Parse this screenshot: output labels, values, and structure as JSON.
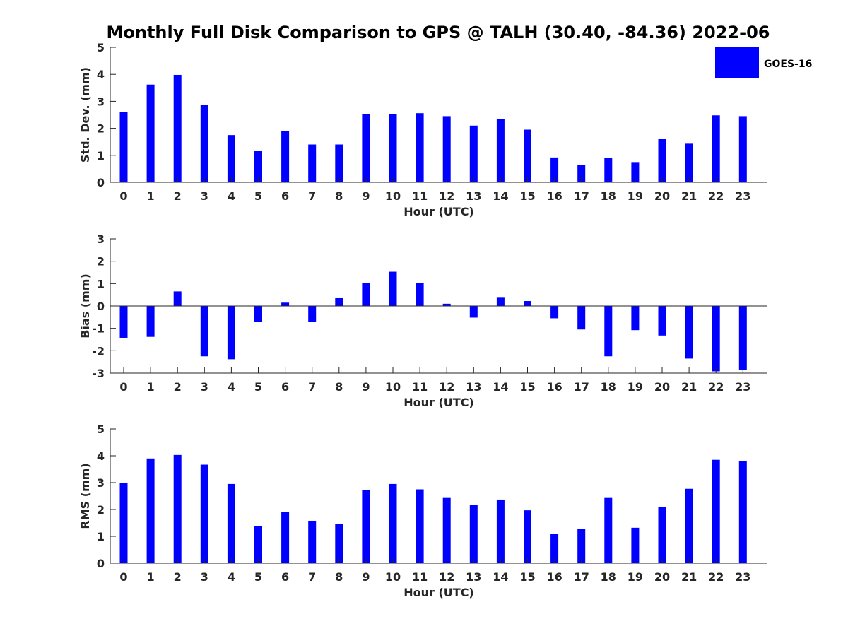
{
  "title": "Monthly Full Disk Comparison to GPS @ TALH (30.40, -84.36) 2022-06",
  "legend": {
    "label": "GOES-16",
    "color": "#0000ff",
    "placement": "top-right"
  },
  "colors": {
    "bar": "#0000ff",
    "axis": "#262626",
    "title": "#000000"
  },
  "chart_data": [
    {
      "type": "bar",
      "ylabel": "Std. Dev. (mm)",
      "xlabel": "Hour (UTC)",
      "ylim": [
        0,
        5
      ],
      "yticks": [
        "0",
        "1",
        "2",
        "3",
        "4",
        "5"
      ],
      "categories": [
        "0",
        "1",
        "2",
        "3",
        "4",
        "5",
        "6",
        "7",
        "8",
        "9",
        "10",
        "11",
        "12",
        "13",
        "14",
        "15",
        "16",
        "17",
        "18",
        "19",
        "20",
        "21",
        "22",
        "23"
      ],
      "series": [
        {
          "name": "GOES-16",
          "values": [
            2.6,
            3.62,
            3.98,
            2.87,
            1.75,
            1.17,
            1.89,
            1.4,
            1.4,
            2.53,
            2.53,
            2.56,
            2.45,
            2.1,
            2.35,
            1.95,
            0.92,
            0.65,
            0.9,
            0.75,
            1.6,
            1.43,
            2.48,
            2.45
          ]
        }
      ],
      "grid": false
    },
    {
      "type": "bar",
      "ylabel": "Bias (mm)",
      "xlabel": "Hour (UTC)",
      "ylim": [
        -3,
        3
      ],
      "yticks": [
        "-3",
        "-2",
        "-1",
        "0",
        "1",
        "2",
        "3"
      ],
      "zero_line": true,
      "categories": [
        "0",
        "1",
        "2",
        "3",
        "4",
        "5",
        "6",
        "7",
        "8",
        "9",
        "10",
        "11",
        "12",
        "13",
        "14",
        "15",
        "16",
        "17",
        "18",
        "19",
        "20",
        "21",
        "22",
        "23"
      ],
      "series": [
        {
          "name": "GOES-16",
          "values": [
            -1.42,
            -1.38,
            0.65,
            -2.25,
            -2.38,
            -0.7,
            0.15,
            -0.72,
            0.38,
            1.02,
            1.53,
            1.02,
            0.1,
            -0.52,
            0.4,
            0.22,
            -0.55,
            -1.05,
            -2.25,
            -1.08,
            -1.32,
            -2.35,
            -2.92,
            -2.85
          ]
        }
      ],
      "grid": false
    },
    {
      "type": "bar",
      "ylabel": "RMS (mm)",
      "xlabel": "Hour (UTC)",
      "ylim": [
        0,
        5
      ],
      "yticks": [
        "0",
        "1",
        "2",
        "3",
        "4",
        "5"
      ],
      "categories": [
        "0",
        "1",
        "2",
        "3",
        "4",
        "5",
        "6",
        "7",
        "8",
        "9",
        "10",
        "11",
        "12",
        "13",
        "14",
        "15",
        "16",
        "17",
        "18",
        "19",
        "20",
        "21",
        "22",
        "23"
      ],
      "series": [
        {
          "name": "GOES-16",
          "values": [
            2.98,
            3.9,
            4.03,
            3.67,
            2.95,
            1.37,
            1.92,
            1.58,
            1.45,
            2.72,
            2.95,
            2.75,
            2.43,
            2.18,
            2.37,
            1.97,
            1.08,
            1.27,
            2.43,
            1.32,
            2.1,
            2.77,
            3.85,
            3.8
          ]
        }
      ],
      "grid": false
    }
  ]
}
